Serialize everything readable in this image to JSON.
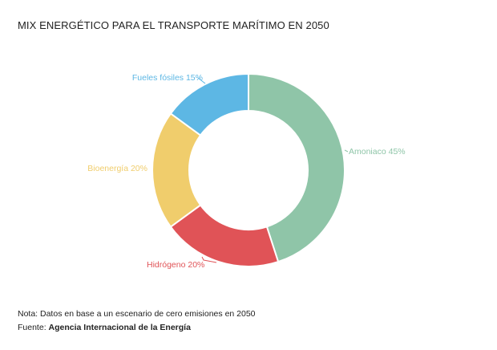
{
  "chart_data": {
    "type": "pie",
    "title": "MIX ENERGÉTICO PARA EL TRANSPORTE MARÍTIMO EN 2050",
    "slices": [
      {
        "label": "Amoniaco",
        "value": 45,
        "display": "Amoniaco 45%",
        "color": "#8fc5a8"
      },
      {
        "label": "Hidrógeno",
        "value": 20,
        "display": "Hidrógeno 20%",
        "color": "#e05357"
      },
      {
        "label": "Bioenergía",
        "value": 20,
        "display": "Bioenergía 20%",
        "color": "#f0cd6c"
      },
      {
        "label": "Fueles fósiles",
        "value": 15,
        "display": "Fueles fósiles 15%",
        "color": "#5db7e4"
      }
    ]
  },
  "footer": {
    "note": "Nota: Datos en base a un escenario de cero emisiones en 2050",
    "source_prefix": "Fuente: ",
    "source_name": "Agencia Internacional de la Energía"
  }
}
